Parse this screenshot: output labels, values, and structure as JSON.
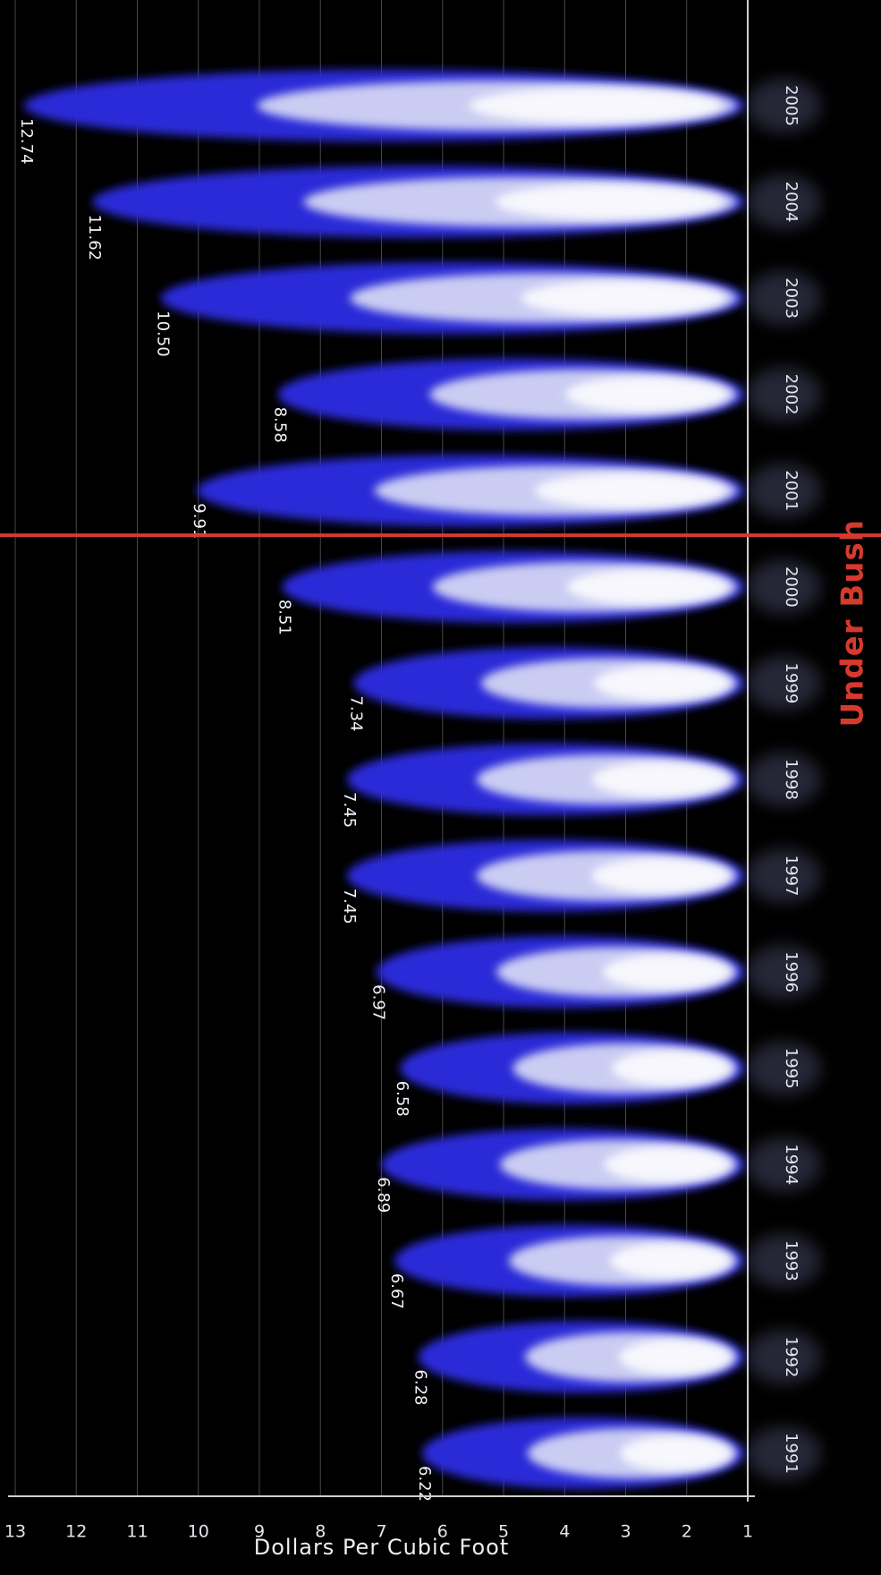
{
  "chart_data": {
    "type": "bar",
    "title": "",
    "xlabel": "",
    "ylabel": "Dollars Per Cubic Foot",
    "ylim": [
      1,
      13
    ],
    "yticks": [
      "1",
      "2",
      "3",
      "4",
      "5",
      "6",
      "7",
      "8",
      "9",
      "10",
      "11",
      "12",
      "13"
    ],
    "grid": true,
    "categories": [
      "1991",
      "1992",
      "1993",
      "1994",
      "1995",
      "1996",
      "1997",
      "1998",
      "1999",
      "2000",
      "2001",
      "2002",
      "2003",
      "2004",
      "2005"
    ],
    "values": [
      6.22,
      6.28,
      6.67,
      6.89,
      6.58,
      6.97,
      7.45,
      7.45,
      7.34,
      8.51,
      9.91,
      8.58,
      10.5,
      11.62,
      12.74
    ],
    "value_labels": [
      "6.22",
      "6.28",
      "6.67",
      "6.89",
      "6.58",
      "6.97",
      "7.45",
      "7.45",
      "7.34",
      "8.51",
      "9.91",
      "8.58",
      "10.50",
      "11.62",
      "12.74"
    ],
    "annotation": {
      "text": "Under Bush",
      "after_category": "2000"
    },
    "colors": {
      "background": "#000000",
      "flame_outer": "#2a2ad8",
      "flame_inner": "#d8daf5",
      "divider": "#d63a2e",
      "grid": "#5a5a5a"
    }
  }
}
